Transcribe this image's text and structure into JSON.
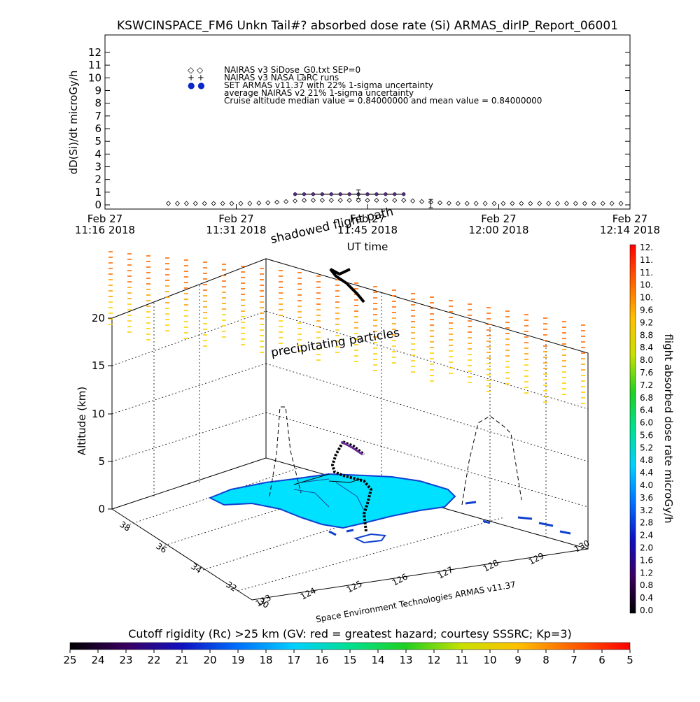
{
  "title": "KSWCINSPACE_FM6 Unkn Tail#? absorbed dose rate (Si) ARMAS_dirIP_Report_06001",
  "top_panel": {
    "ylabel": "dD(Si)/dt microGy/h",
    "xlabel": "UT time",
    "y_ticks": [
      "0",
      "1",
      "2",
      "3",
      "4",
      "5",
      "6",
      "7",
      "8",
      "9",
      "10",
      "11",
      "12"
    ],
    "x_ticks": [
      {
        "date": "Feb 27",
        "time": "11:16 2018"
      },
      {
        "date": "Feb 27",
        "time": "11:31 2018"
      },
      {
        "date": "Feb 27",
        "time": "11:45 2018"
      },
      {
        "date": "Feb 27",
        "time": "12:00 2018"
      },
      {
        "date": "Feb 27",
        "time": "12:14 2018"
      }
    ],
    "legend": [
      {
        "marker": "◇ ◇",
        "text": "NAIRAS v3 SiDose_G0.txt SEP=0"
      },
      {
        "marker": "+ +",
        "text": "NAIRAS v3 NASA LaRC runs"
      },
      {
        "marker": "● ●",
        "text": "SET ARMAS v11.37 with 22% 1-sigma uncertainty"
      },
      {
        "marker": "",
        "text": "average NAIRAS v2 21% 1-sigma uncertainty"
      },
      {
        "marker": "",
        "text": "Cruise altitude median value = 0.84000000 and mean value = 0.84000000"
      }
    ]
  },
  "bottom_panel": {
    "ylabel": "Altitude (km)",
    "z_ticks": [
      "0",
      "5",
      "10",
      "15",
      "20"
    ],
    "lat_ticks": [
      "38",
      "36",
      "34",
      "32",
      "30"
    ],
    "lon_ticks": [
      "123",
      "124",
      "125",
      "126",
      "127",
      "128",
      "129",
      "130"
    ],
    "annotations": {
      "shadowed": "shadowed flight path",
      "precip": "precipitating particles",
      "credit": "Space Environment Technologies ARMAS v11.37"
    }
  },
  "colorbar_right": {
    "label": "flight absorbed dose rate microGy/h",
    "ticks": [
      "12.",
      "11.",
      "11.",
      "10.",
      "10.",
      "9.6",
      "9.2",
      "8.8",
      "8.4",
      "8.0",
      "7.6",
      "7.2",
      "6.8",
      "6.4",
      "6.0",
      "5.6",
      "5.2",
      "4.8",
      "4.4",
      "4.0",
      "3.6",
      "3.2",
      "2.8",
      "2.4",
      "2.0",
      "1.6",
      "1.2",
      "0.8",
      "0.4",
      "0.0"
    ]
  },
  "colorbar_bottom": {
    "label": "Cutoff rigidity (Rc) >25 km (GV: red = greatest hazard; courtesy SSSRC; Kp=3)",
    "ticks": [
      "25",
      "24",
      "23",
      "22",
      "21",
      "20",
      "19",
      "18",
      "17",
      "16",
      "15",
      "14",
      "13",
      "12",
      "11",
      "10",
      "9",
      "8",
      "7",
      "6",
      "5"
    ]
  },
  "chart_data": {
    "type": "line",
    "title": "KSWCINSPACE_FM6 Unkn Tail#? absorbed dose rate (Si) ARMAS_dirIP_Report_06001",
    "xlabel": "UT time",
    "ylabel": "dD(Si)/dt microGy/h",
    "ylim": [
      0,
      12
    ],
    "x_range": [
      "11:16",
      "12:14"
    ],
    "series": [
      {
        "name": "NAIRAS v3 SiDose_G0.txt SEP=0",
        "x": [
          "11:23",
          "11:24",
          "11:25",
          "11:26",
          "11:27",
          "11:28",
          "11:29",
          "11:30",
          "11:31",
          "11:32",
          "11:33",
          "11:34",
          "11:35",
          "11:36",
          "11:37",
          "11:38",
          "11:39",
          "11:40",
          "11:41",
          "11:42",
          "11:43",
          "11:44",
          "11:45",
          "11:46",
          "11:47",
          "11:48",
          "11:49",
          "11:50",
          "11:51",
          "11:52",
          "11:53",
          "11:54",
          "11:55",
          "11:56",
          "11:57",
          "11:58",
          "11:59",
          "12:00",
          "12:01",
          "12:02",
          "12:03",
          "12:04",
          "12:05",
          "12:06",
          "12:07",
          "12:08",
          "12:09",
          "12:10",
          "12:11",
          "12:12",
          "12:13"
        ],
        "values": [
          0,
          0,
          0,
          0,
          0,
          0,
          0,
          0,
          0,
          0,
          0.03,
          0.06,
          0.1,
          0.15,
          0.2,
          0.25,
          0.25,
          0.25,
          0.25,
          0.25,
          0.25,
          0.25,
          0.25,
          0.25,
          0.25,
          0.25,
          0.25,
          0.2,
          0.15,
          0.1,
          0.05,
          0.02,
          0,
          0,
          0,
          0,
          0,
          0,
          0,
          0,
          0,
          0,
          0,
          0,
          0,
          0,
          0,
          0,
          0,
          0,
          0
        ]
      },
      {
        "name": "SET ARMAS v11.37 with 22% 1-sigma uncertainty",
        "x": [
          "11:37",
          "11:38",
          "11:39",
          "11:40",
          "11:41",
          "11:42",
          "11:43",
          "11:44",
          "11:45",
          "11:46",
          "11:47",
          "11:48",
          "11:49"
        ],
        "values": [
          0.84,
          0.84,
          0.84,
          0.84,
          0.84,
          0.84,
          0.84,
          0.84,
          0.84,
          0.84,
          0.84,
          0.84,
          0.84
        ]
      }
    ]
  }
}
